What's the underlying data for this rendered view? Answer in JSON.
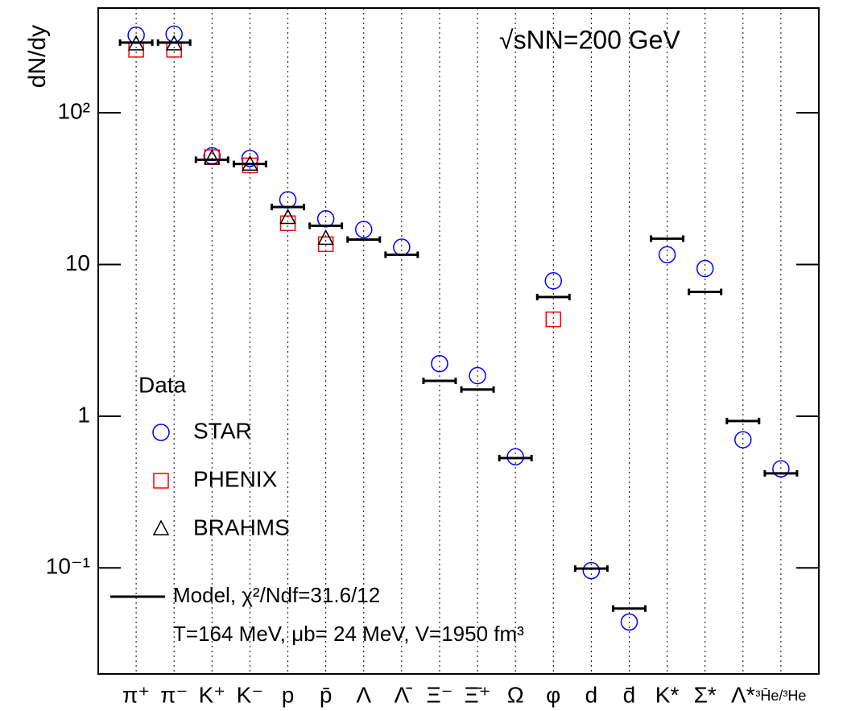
{
  "chart_data": {
    "type": "scatter",
    "y_label": "dN/dy",
    "annotation": "√sNN=200 GeV",
    "categories": [
      "π⁺",
      "π⁻",
      "K⁺",
      "K⁻",
      "p",
      "p̄",
      "Λ",
      "Λ̄",
      "Ξ⁻",
      "Ξ̄⁺",
      "Ω",
      "φ",
      "d",
      "d̄",
      "K*",
      "Σ*",
      "Λ*",
      "³H̄e/³He"
    ],
    "log_y": true,
    "ylim": [
      0.02,
      490
    ],
    "yticks": [
      {
        "value": 100,
        "label": "10²"
      },
      10,
      1,
      {
        "value": 0.1,
        "label": "10⁻¹"
      }
    ],
    "legend": "lower left",
    "legend_title": "Data",
    "series": [
      {
        "name": "STAR",
        "color": "#0000ff",
        "marker": "circle",
        "values": [
          325,
          330,
          52,
          50,
          26.7,
          20,
          17,
          13,
          2.22,
          1.85,
          0.54,
          7.8,
          0.096,
          0.044,
          11.6,
          9.4,
          0.7,
          0.45
        ]
      },
      {
        "name": "PHENIX",
        "color": "#ff0000",
        "marker": "square",
        "values": [
          260,
          260,
          51,
          45,
          18.7,
          13.6,
          null,
          null,
          null,
          null,
          null,
          4.35,
          null,
          null,
          null,
          null,
          null,
          null
        ]
      },
      {
        "name": "BRAHMS",
        "color": "#000000",
        "marker": "triangle",
        "values": [
          283,
          283,
          50,
          45.6,
          20.3,
          14.8,
          null,
          null,
          null,
          null,
          null,
          null,
          null,
          null,
          null,
          null,
          null,
          null
        ]
      },
      {
        "name": "Model, χ²/Ndf=31.6/12",
        "color": "#000000",
        "marker": "hline",
        "values": [
          290,
          290,
          49,
          46,
          23.9,
          18,
          14.6,
          11.6,
          1.71,
          1.5,
          0.53,
          6.1,
          0.099,
          0.054,
          14.8,
          6.6,
          0.93,
          0.42
        ]
      }
    ],
    "model_note": "T=164 MeV, μb= 24 MeV, V=1950 fm³"
  }
}
